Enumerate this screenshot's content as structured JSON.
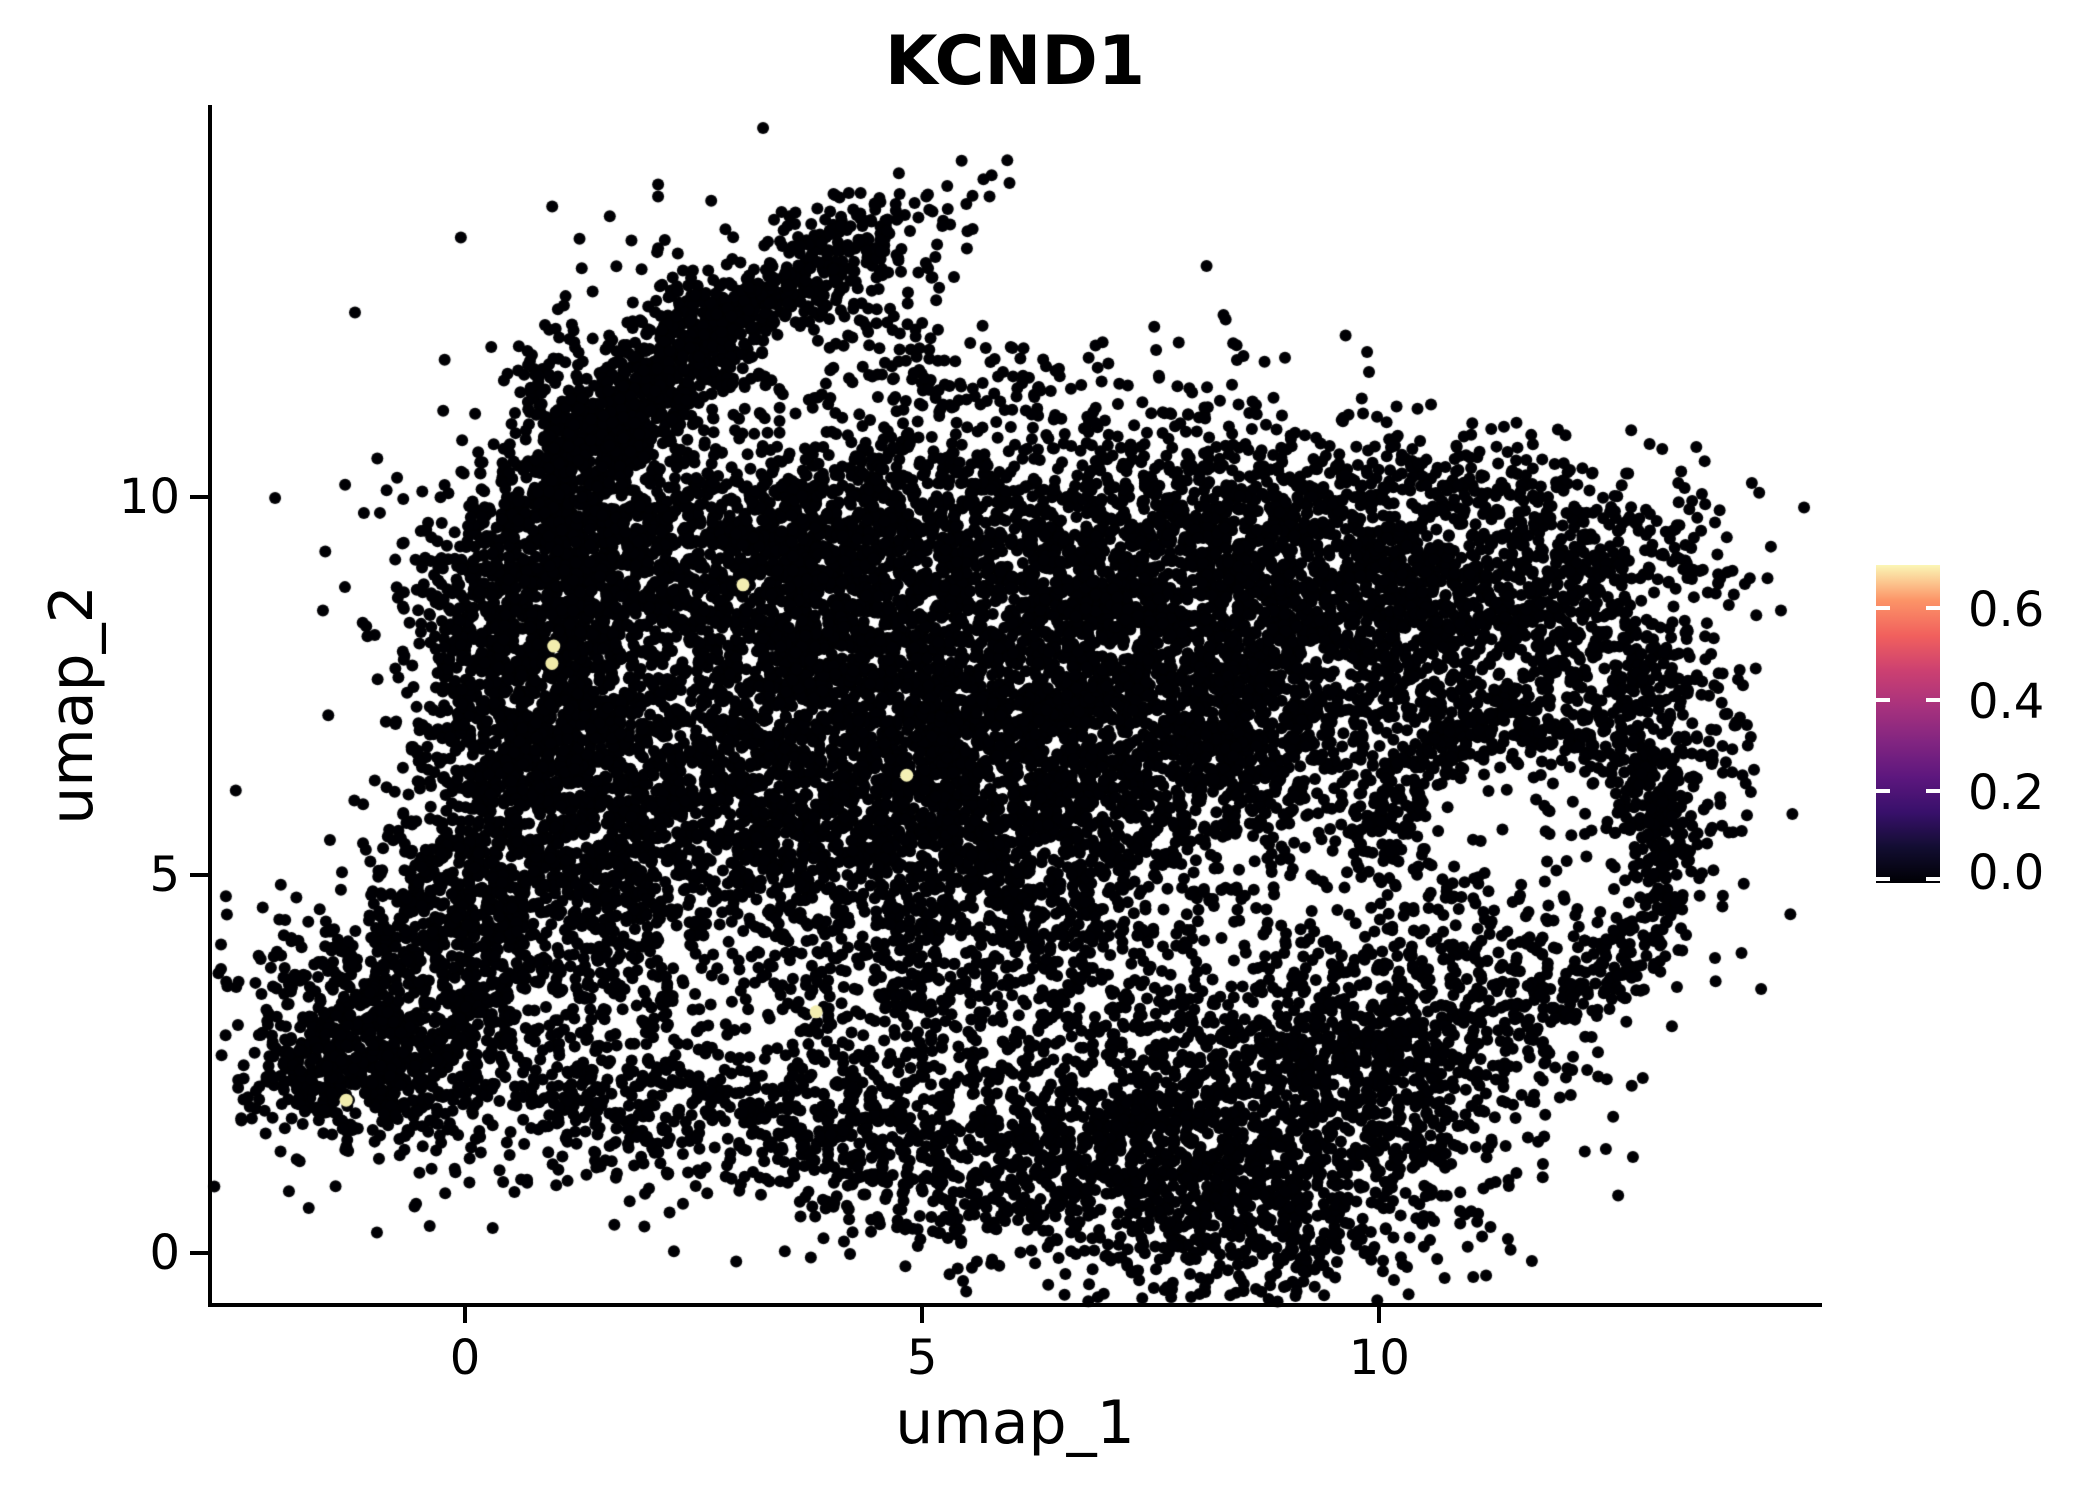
{
  "title": "KCND1",
  "chart_data": {
    "type": "scatter",
    "title": "KCND1",
    "xlabel": "umap_1",
    "ylabel": "umap_2",
    "x_range": [
      -2.79,
      14.82
    ],
    "y_range": [
      -0.69,
      15.19
    ],
    "grid": false,
    "background": "#ffffff",
    "axis_color": "#000000",
    "point_color": "#000004",
    "point_radius_px": 6,
    "x_ticks": [
      {
        "value": 0,
        "label": "0"
      },
      {
        "value": 5,
        "label": "5"
      },
      {
        "value": 10,
        "label": "10"
      }
    ],
    "y_ticks": [
      {
        "value": 0,
        "label": "0"
      },
      {
        "value": 5,
        "label": "5"
      },
      {
        "value": 10,
        "label": "10"
      }
    ],
    "colorbar": {
      "position": "right",
      "colormap": "magma",
      "value_range": [
        0.0,
        0.695
      ],
      "ticks": [
        {
          "value": 0.6,
          "label": "0.6"
        },
        {
          "value": 0.4,
          "label": "0.4"
        },
        {
          "value": 0.2,
          "label": "0.2"
        },
        {
          "value": 0.0,
          "label": "0.0"
        }
      ],
      "gradient_stops": [
        "#000004",
        "#120d31",
        "#38106b",
        "#5d177e",
        "#822581",
        "#a8327d",
        "#cc4071",
        "#f1605d",
        "#fc9467",
        "#fbf6b5"
      ],
      "tick_mark_color": "#ffffff"
    },
    "highlighted_cells": [
      {
        "x": 3.04,
        "y": 8.84,
        "value": 0.66,
        "color": "#f4efb2"
      },
      {
        "x": 0.97,
        "y": 8.03,
        "value": 0.62,
        "color": "#f2edae"
      },
      {
        "x": 0.95,
        "y": 7.8,
        "value": 0.59,
        "color": "#f0eaa9"
      },
      {
        "x": 4.83,
        "y": 6.32,
        "value": 0.69,
        "color": "#f5f1b6"
      },
      {
        "x": 3.84,
        "y": 3.19,
        "value": 0.63,
        "color": "#f3eeb0"
      },
      {
        "x": -1.3,
        "y": 2.02,
        "value": 0.58,
        "color": "#f1ecac"
      }
    ],
    "cluster_model": {
      "seed": 7,
      "note": "procedural reconstruction of ~19000 zero-expression cells",
      "blobs": [
        {
          "kind": "gauss",
          "cx": 3.55,
          "cy": 12.85,
          "sx": 0.95,
          "sy": 0.3,
          "rot": 33,
          "n": 430
        },
        {
          "kind": "gauss",
          "cx": 2.15,
          "cy": 11.6,
          "sx": 0.8,
          "sy": 0.32,
          "rot": 52,
          "n": 450
        },
        {
          "kind": "gauss",
          "cx": 1.4,
          "cy": 10.5,
          "sx": 0.55,
          "sy": 0.35,
          "rot": 50,
          "n": 300
        },
        {
          "kind": "gauss",
          "cx": 1.0,
          "cy": 11.35,
          "sx": 0.3,
          "sy": 0.42,
          "rot": 0,
          "n": 90
        },
        {
          "kind": "gauss",
          "cx": 2.7,
          "cy": 12.1,
          "sx": 1.4,
          "sy": 0.95,
          "rot": 35,
          "n": 150
        },
        {
          "kind": "gauss",
          "cx": 4.55,
          "cy": 11.9,
          "sx": 0.55,
          "sy": 0.85,
          "rot": 0,
          "n": 60
        },
        {
          "kind": "gauss",
          "cx": 5.3,
          "cy": 11.5,
          "sx": 0.5,
          "sy": 0.6,
          "rot": 0,
          "n": 50
        },
        {
          "kind": "gauss",
          "cx": 1.05,
          "cy": 8.95,
          "sx": 0.85,
          "sy": 0.8,
          "rot": 0,
          "n": 950
        },
        {
          "kind": "gauss",
          "cx": 0.25,
          "cy": 7.3,
          "sx": 0.4,
          "sy": 1.0,
          "rot": 0,
          "n": 280
        },
        {
          "kind": "gauss",
          "cx": 0.95,
          "cy": 6.85,
          "sx": 0.75,
          "sy": 0.85,
          "rot": 0,
          "n": 520
        },
        {
          "kind": "gauss",
          "cx": 1.4,
          "cy": 5.7,
          "sx": 0.85,
          "sy": 0.75,
          "rot": 0,
          "n": 480
        },
        {
          "kind": "gauss",
          "cx": 1.7,
          "cy": 4.0,
          "sx": 0.5,
          "sy": 0.85,
          "rot": -15,
          "n": 240
        },
        {
          "kind": "gauss",
          "cx": 0.45,
          "cy": 5.1,
          "sx": 0.45,
          "sy": 0.85,
          "rot": 0,
          "n": 140
        },
        {
          "kind": "gauss",
          "cx": 3.25,
          "cy": 9.35,
          "sx": 1.25,
          "sy": 0.65,
          "rot": 0,
          "n": 620
        },
        {
          "kind": "gauss",
          "cx": 4.85,
          "cy": 9.65,
          "sx": 1.25,
          "sy": 0.6,
          "rot": 0,
          "n": 560
        },
        {
          "kind": "gauss",
          "cx": 3.35,
          "cy": 7.85,
          "sx": 1.05,
          "sy": 0.85,
          "rot": 0,
          "n": 540
        },
        {
          "kind": "gauss",
          "cx": 4.75,
          "cy": 8.05,
          "sx": 1.05,
          "sy": 0.85,
          "rot": 0,
          "n": 540
        },
        {
          "kind": "gauss",
          "cx": 3.05,
          "cy": 6.35,
          "sx": 0.95,
          "sy": 0.85,
          "rot": 0,
          "n": 440
        },
        {
          "kind": "gauss",
          "cx": 4.65,
          "cy": 6.45,
          "sx": 0.95,
          "sy": 0.85,
          "rot": 0,
          "n": 440
        },
        {
          "kind": "gauss",
          "cx": 3.75,
          "cy": 5.1,
          "sx": 1.05,
          "sy": 0.75,
          "rot": 0,
          "n": 400
        },
        {
          "kind": "gauss",
          "cx": 5.65,
          "cy": 5.4,
          "sx": 1.05,
          "sy": 0.95,
          "rot": 0,
          "n": 440
        },
        {
          "kind": "gauss",
          "cx": 5.95,
          "cy": 7.35,
          "sx": 0.95,
          "sy": 0.95,
          "rot": 0,
          "n": 470
        },
        {
          "kind": "gauss",
          "cx": 6.95,
          "cy": 8.65,
          "sx": 1.05,
          "sy": 0.95,
          "rot": 0,
          "n": 520
        },
        {
          "kind": "gauss",
          "cx": 6.65,
          "cy": 6.25,
          "sx": 0.95,
          "sy": 0.95,
          "rot": 0,
          "n": 400
        },
        {
          "kind": "gauss",
          "cx": 4.9,
          "cy": 3.7,
          "sx": 1.35,
          "sy": 0.85,
          "rot": 0,
          "n": 280
        },
        {
          "kind": "gauss",
          "cx": 6.55,
          "cy": 4.35,
          "sx": 1.05,
          "sy": 0.95,
          "rot": 0,
          "n": 320
        },
        {
          "kind": "gauss",
          "cx": 8.85,
          "cy": 8.25,
          "sx": 1.25,
          "sy": 0.95,
          "rot": 0,
          "n": 1250
        },
        {
          "kind": "gauss",
          "cx": 8.25,
          "cy": 6.65,
          "sx": 1.05,
          "sy": 0.85,
          "rot": 0,
          "n": 720
        },
        {
          "kind": "gauss",
          "cx": 10.35,
          "cy": 8.95,
          "sx": 1.05,
          "sy": 0.55,
          "rot": 0,
          "n": 400
        },
        {
          "kind": "gauss",
          "cx": 11.35,
          "cy": 8.05,
          "sx": 0.65,
          "sy": 0.95,
          "rot": 0,
          "n": 320
        },
        {
          "kind": "gauss",
          "cx": 12.7,
          "cy": 7.4,
          "sx": 0.6,
          "sy": 1.0,
          "rot": 0,
          "n": 330
        },
        {
          "kind": "arc",
          "cx": 11.6,
          "cy": 5.2,
          "rx": 1.55,
          "ry": 1.85,
          "a0": -80,
          "a1": 185,
          "jitter": 0.22,
          "n": 520
        },
        {
          "kind": "gauss",
          "cx": 8.85,
          "cy": 9.95,
          "sx": 1.35,
          "sy": 0.5,
          "rot": 0,
          "n": 400
        },
        {
          "kind": "gauss",
          "cx": 6.4,
          "cy": 10.95,
          "sx": 1.7,
          "sy": 0.65,
          "rot": 0,
          "n": 200
        },
        {
          "kind": "gauss",
          "cx": 10.9,
          "cy": 10.25,
          "sx": 0.85,
          "sy": 0.45,
          "rot": 0,
          "n": 80
        },
        {
          "kind": "gauss",
          "cx": 12.65,
          "cy": 9.3,
          "sx": 0.75,
          "sy": 0.55,
          "rot": 0,
          "n": 170
        },
        {
          "kind": "gauss",
          "cx": 13.35,
          "cy": 6.1,
          "sx": 0.5,
          "sy": 1.2,
          "rot": 0,
          "n": 120
        },
        {
          "kind": "gauss",
          "cx": 8.65,
          "cy": 1.95,
          "sx": 1.45,
          "sy": 1.05,
          "rot": 0,
          "n": 950
        },
        {
          "kind": "gauss",
          "cx": 7.25,
          "cy": 1.25,
          "sx": 0.95,
          "sy": 0.8,
          "rot": 0,
          "n": 460
        },
        {
          "kind": "gauss",
          "cx": 9.95,
          "cy": 2.65,
          "sx": 0.95,
          "sy": 0.95,
          "rot": 0,
          "n": 440
        },
        {
          "kind": "gauss",
          "cx": 8.85,
          "cy": 0.4,
          "sx": 0.95,
          "sy": 0.5,
          "rot": 0,
          "n": 280
        },
        {
          "kind": "gauss",
          "cx": 11.05,
          "cy": 3.55,
          "sx": 0.85,
          "sy": 0.85,
          "rot": 0,
          "n": 300
        },
        {
          "kind": "gauss",
          "cx": 4.45,
          "cy": 2.0,
          "sx": 1.25,
          "sy": 0.85,
          "rot": 0,
          "n": 290
        },
        {
          "kind": "gauss",
          "cx": 5.7,
          "cy": 1.0,
          "sx": 1.25,
          "sy": 0.55,
          "rot": 0,
          "n": 270
        },
        {
          "kind": "gauss",
          "cx": 3.75,
          "cy": 1.65,
          "sx": 1.05,
          "sy": 0.4,
          "rot": -15,
          "n": 230
        },
        {
          "kind": "gauss",
          "cx": 1.4,
          "cy": 2.3,
          "sx": 0.85,
          "sy": 0.95,
          "rot": 0,
          "n": 140
        },
        {
          "kind": "gauss",
          "cx": 1.75,
          "cy": 1.85,
          "sx": 0.55,
          "sy": 0.35,
          "rot": 0,
          "n": 90
        },
        {
          "kind": "gauss",
          "cx": -0.8,
          "cy": 3.05,
          "sx": 0.8,
          "sy": 0.7,
          "rot": 0,
          "n": 650
        },
        {
          "kind": "gauss",
          "cx": -1.15,
          "cy": 2.35,
          "sx": 0.65,
          "sy": 0.45,
          "rot": 0,
          "n": 260
        },
        {
          "kind": "gauss",
          "cx": -0.7,
          "cy": 3.15,
          "sx": 1.15,
          "sy": 1.05,
          "rot": 0,
          "n": 190
        },
        {
          "kind": "gauss",
          "cx": 0.2,
          "cy": 4.45,
          "sx": 0.55,
          "sy": 0.5,
          "rot": 0,
          "n": 150
        },
        {
          "kind": "gauss",
          "cx": -0.35,
          "cy": 4.95,
          "sx": 0.38,
          "sy": 0.42,
          "rot": 0,
          "n": 90
        }
      ]
    }
  }
}
